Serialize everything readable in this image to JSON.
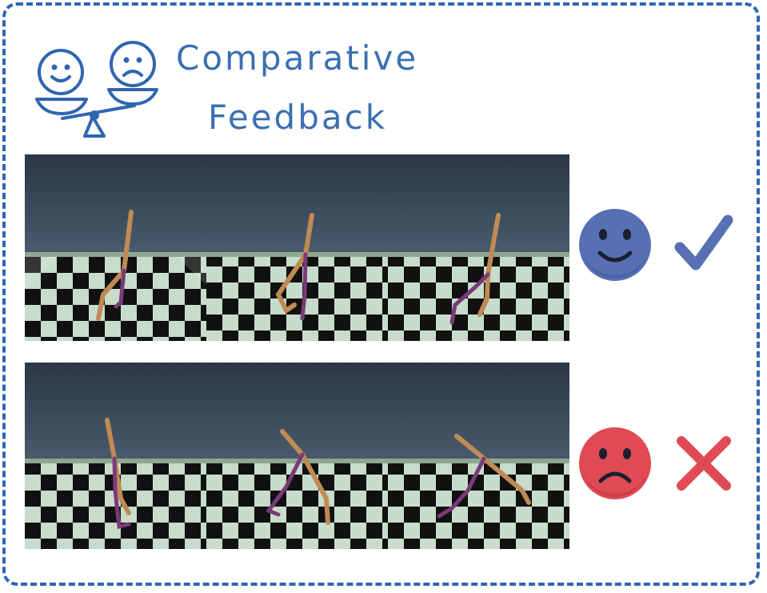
{
  "title": {
    "line1": "Comparative",
    "line2": "Feedback"
  },
  "icons": {
    "header": "balance-scale-with-faces-icon",
    "positive_face": "smiling-face-icon",
    "positive_mark": "checkmark-icon",
    "negative_face": "frowning-face-icon",
    "negative_mark": "cross-icon"
  },
  "colors": {
    "border": "#2f66b0",
    "title": "#3b70b0",
    "positive": "#5770b3",
    "negative": "#e04a55"
  },
  "trajectories": [
    {
      "verdict": "preferred"
    },
    {
      "verdict": "rejected"
    }
  ]
}
